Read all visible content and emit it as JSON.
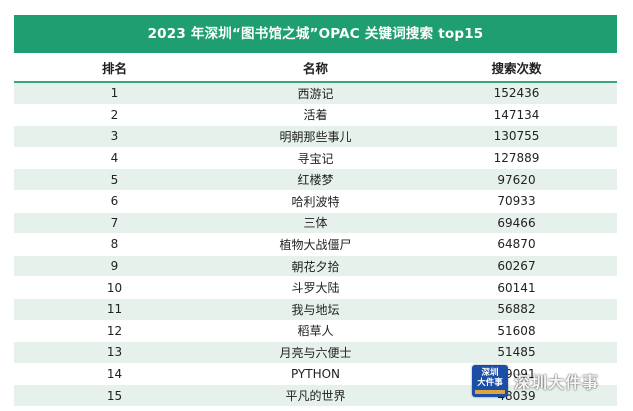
{
  "title": "2023 年深圳“图书馆之城”OPAC 关键词搜索 top15",
  "columns": [
    "排名",
    "名称",
    "搜索次数"
  ],
  "rows": [
    [
      "1",
      "西游记",
      "152436"
    ],
    [
      "2",
      "活着",
      "147134"
    ],
    [
      "3",
      "明朝那些事儿",
      "130755"
    ],
    [
      "4",
      "寻宝记",
      "127889"
    ],
    [
      "5",
      "红楼梦",
      "97620"
    ],
    [
      "6",
      "哈利波特",
      "70933"
    ],
    [
      "7",
      "三体",
      "69466"
    ],
    [
      "8",
      "植物大战僵尸",
      "64870"
    ],
    [
      "9",
      "朝花夕拾",
      "60267"
    ],
    [
      "10",
      "斗罗大陆",
      "60141"
    ],
    [
      "11",
      "我与地坛",
      "56882"
    ],
    [
      "12",
      "稻草人",
      "51608"
    ],
    [
      "13",
      "月亮与六便士",
      "51485"
    ],
    [
      "14",
      "PYTHON",
      "49091"
    ],
    [
      "15",
      "平凡的世界",
      "48039"
    ]
  ],
  "watermark": {
    "logo_line1": "深圳",
    "logo_line2": "大件事",
    "text": "深圳大件事"
  },
  "colors": {
    "header_green": "#1f9e72",
    "stripe_light_green": "#e5f1ea"
  }
}
